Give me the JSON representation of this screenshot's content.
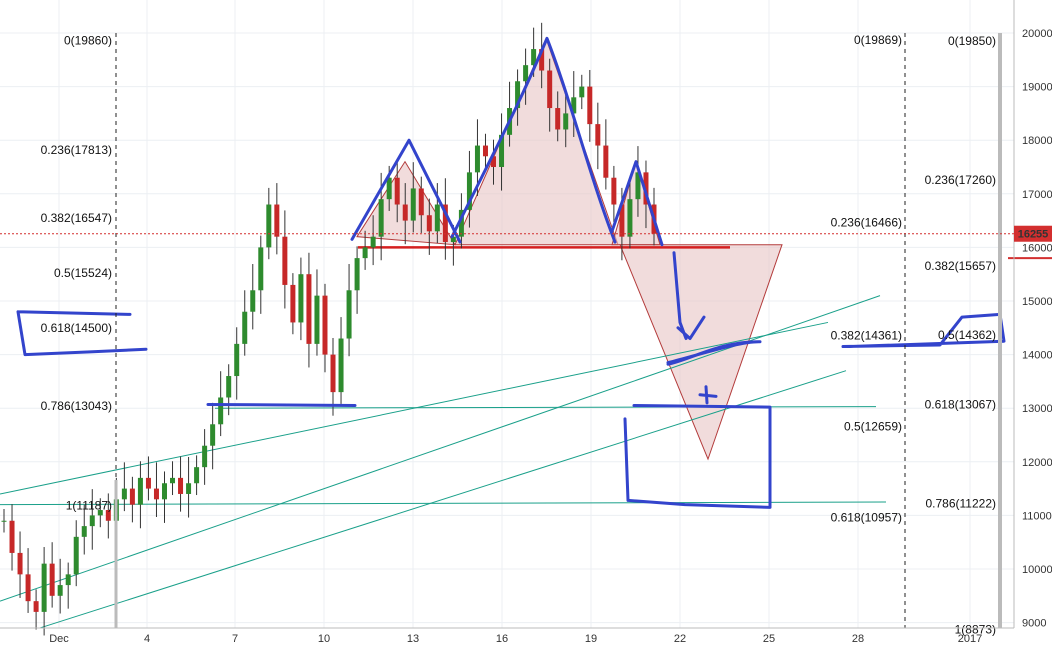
{
  "chart_data": {
    "type": "candlestick",
    "ylim": [
      8800,
      20300
    ],
    "y_ticks": [
      9000,
      10000,
      11000,
      12000,
      13000,
      14000,
      15000,
      16000,
      17000,
      18000,
      19000,
      20000
    ],
    "x_ticks": [
      "Dec",
      "4",
      "7",
      "10",
      "13",
      "16",
      "19",
      "22",
      "25",
      "28",
      "2017"
    ],
    "current_price_label": "16255",
    "current_price": 16255,
    "colors": {
      "up": "#2e8b2e",
      "down": "#c62828",
      "wick": "#333333",
      "grid": "#eceff3",
      "pattern_fill": "#e8c4c4",
      "pattern_line": "#b33b3b",
      "trend": "#1aa08a",
      "marker": "#3344cc",
      "support": "#d42020",
      "price_tag": "#d32f2f"
    },
    "fib_left": [
      {
        "label": "0(19860)",
        "value": 19860
      },
      {
        "label": "0.236(17813)",
        "value": 17813
      },
      {
        "label": "0.382(16547)",
        "value": 16547
      },
      {
        "label": "0.5(15524)",
        "value": 15524
      },
      {
        "label": "0.618(14500)",
        "value": 14500
      },
      {
        "label": "0.786(13043)",
        "value": 13043
      },
      {
        "label": "1(11187)",
        "value": 11187
      }
    ],
    "fib_right_a": [
      {
        "label": "0(19869)",
        "value": 19869
      },
      {
        "label": "0.236(16466)",
        "value": 16466
      },
      {
        "label": "0.382(14361)",
        "value": 14361
      },
      {
        "label": "0.5(12659)",
        "value": 12659
      },
      {
        "label": "0.618(10957)",
        "value": 10957
      }
    ],
    "fib_right_b": [
      {
        "label": "0(19850)",
        "value": 19850
      },
      {
        "label": "0.236(17260)",
        "value": 17260
      },
      {
        "label": "0.382(15657)",
        "value": 15657
      },
      {
        "label": "0.5(14362)",
        "value": 14362
      },
      {
        "label": "0.618(13067)",
        "value": 13067
      },
      {
        "label": "0.786(11222)",
        "value": 11222
      },
      {
        "label": "1(8873)",
        "value": 8873
      }
    ],
    "candles_close": [
      10900,
      10300,
      9900,
      9400,
      9200,
      10100,
      9500,
      9700,
      9900,
      10600,
      10800,
      11000,
      11100,
      10900,
      11300,
      11500,
      11200,
      11700,
      11500,
      11300,
      11600,
      11700,
      11400,
      11600,
      11900,
      12300,
      12700,
      13200,
      13600,
      14200,
      14800,
      15200,
      16000,
      16800,
      16200,
      15300,
      14600,
      15500,
      14200,
      15100,
      14000,
      13300,
      14300,
      15200,
      15800,
      16000,
      16200,
      16900,
      17300,
      16800,
      16500,
      17100,
      16600,
      16300,
      16800,
      16100,
      16200,
      16700,
      17400,
      17900,
      17700,
      17500,
      18100,
      18600,
      19100,
      19400,
      19700,
      19300,
      18600,
      18200,
      18500,
      18800,
      19000,
      18300,
      17900,
      17300,
      16800,
      16200,
      16900,
      17400,
      16800,
      16255
    ]
  }
}
